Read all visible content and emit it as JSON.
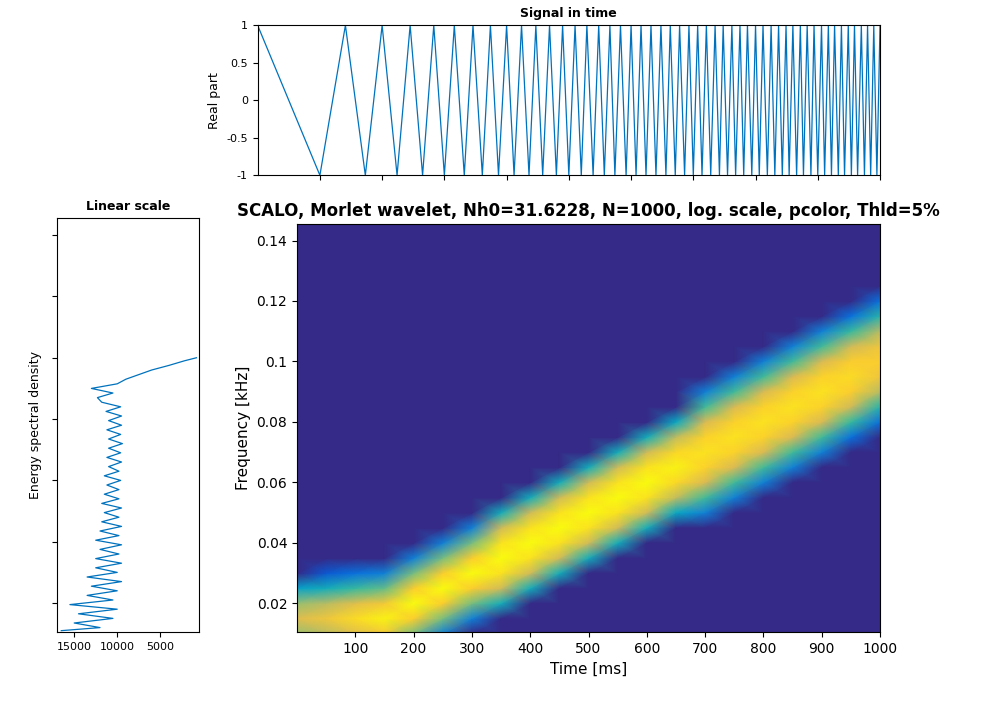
{
  "chart_data": [
    {
      "type": "line",
      "title": "Signal in time",
      "y_label": "Real part",
      "color": "#0072bd",
      "x": [
        0,
        100,
        141,
        173,
        200,
        224,
        245,
        265,
        283,
        300,
        316,
        332,
        346,
        361,
        374,
        387,
        400,
        412,
        424,
        436,
        447,
        458,
        469,
        480,
        490,
        500,
        510,
        520,
        529,
        539,
        548,
        557,
        566,
        574,
        583,
        592,
        600,
        608,
        616,
        624,
        632,
        640,
        648,
        656,
        663,
        671,
        678,
        686,
        693,
        700,
        707,
        714,
        721,
        728,
        735,
        742,
        748,
        755,
        762,
        768,
        775,
        781,
        787,
        794,
        800,
        806,
        812,
        819,
        825,
        831,
        837,
        843,
        849,
        854,
        860,
        866,
        872,
        877,
        883,
        889,
        894,
        900,
        906,
        911,
        917,
        922,
        927,
        933,
        938,
        943,
        949,
        954,
        959,
        964,
        970,
        975,
        980,
        985,
        990,
        995,
        1000
      ],
      "values": [
        1,
        -1,
        1,
        -1,
        1,
        -1,
        1,
        -1,
        1,
        -1,
        1,
        -1,
        1,
        -1,
        1,
        -1,
        1,
        -1,
        1,
        -1,
        1,
        -1,
        1,
        -1,
        1,
        -1,
        1,
        -1,
        1,
        -1,
        1,
        -1,
        1,
        -1,
        1,
        -1,
        1,
        -1,
        1,
        -1,
        1,
        -1,
        1,
        -1,
        1,
        -1,
        1,
        -1,
        1,
        -1,
        1,
        -1,
        1,
        -1,
        1,
        -1,
        1,
        -1,
        1,
        -1,
        1,
        -1,
        1,
        -1,
        1,
        -1,
        1,
        -1,
        1,
        -1,
        1,
        -1,
        1,
        -1,
        1,
        -1,
        1,
        -1,
        1,
        -1,
        1,
        -1,
        1,
        -1,
        1,
        -1,
        1,
        -1,
        1,
        -1,
        1,
        -1,
        1,
        -1,
        1,
        -1,
        1,
        -1,
        1,
        -1,
        1
      ],
      "xlim": [
        0,
        1000
      ],
      "ylim": [
        -1,
        1
      ],
      "xticks": [
        100,
        200,
        300,
        400,
        500,
        600,
        700,
        800,
        900,
        1000
      ],
      "yticks": [
        -1,
        -0.5,
        0,
        0.5,
        1
      ],
      "tick_labels": "y"
    },
    {
      "type": "line",
      "orientation": "horizontal",
      "title": "Linear scale",
      "y_label": "Energy spectral density",
      "color": "#0072bd",
      "y": [
        0.011,
        0.012,
        0.0135,
        0.015,
        0.0165,
        0.018,
        0.0195,
        0.021,
        0.0225,
        0.024,
        0.0255,
        0.027,
        0.0285,
        0.03,
        0.0315,
        0.033,
        0.0345,
        0.036,
        0.0375,
        0.039,
        0.0405,
        0.042,
        0.0435,
        0.045,
        0.0465,
        0.048,
        0.0495,
        0.051,
        0.0525,
        0.054,
        0.0555,
        0.057,
        0.0585,
        0.06,
        0.0615,
        0.063,
        0.0645,
        0.066,
        0.0675,
        0.069,
        0.0705,
        0.072,
        0.0735,
        0.075,
        0.0765,
        0.078,
        0.0795,
        0.081,
        0.0825,
        0.084,
        0.0855,
        0.087,
        0.0885,
        0.09,
        0.0915,
        0.093,
        0.0945,
        0.096,
        0.0975,
        0.099,
        0.1
      ],
      "values": [
        16500,
        12000,
        15000,
        10500,
        14500,
        10000,
        15500,
        10500,
        13500,
        10000,
        13000,
        9500,
        13500,
        10000,
        12500,
        9500,
        12500,
        9800,
        12000,
        9500,
        12500,
        9800,
        12000,
        9500,
        11800,
        9800,
        11500,
        9500,
        11800,
        9800,
        11500,
        9800,
        11200,
        9600,
        11500,
        9800,
        11000,
        9500,
        11200,
        9600,
        11000,
        9400,
        11000,
        9600,
        11200,
        9500,
        11000,
        9500,
        11300,
        9600,
        11800,
        12300,
        10500,
        13000,
        10000,
        9000,
        7500,
        6000,
        4000,
        2200,
        800
      ],
      "xlim": [
        17000,
        500
      ],
      "xticks": [
        15000,
        10000,
        5000
      ],
      "ylim": [
        0.0105,
        0.1455
      ],
      "yticks": [
        0.02,
        0.04,
        0.06,
        0.08,
        0.1,
        0.12,
        0.14
      ],
      "tick_labels": "x"
    },
    {
      "type": "heatmap",
      "title": "SCALO, Morlet wavelet, Nh0=31.6228, N=1000, log. scale, pcolor, Thld=5%",
      "x_label": "Time [ms]",
      "y_label": "Frequency [kHz]",
      "x": [
        0,
        50,
        100,
        150,
        200,
        250,
        300,
        350,
        400,
        450,
        500,
        550,
        600,
        650,
        700,
        750,
        800,
        850,
        900,
        950,
        1000
      ],
      "y": [
        0.01,
        0.015,
        0.02,
        0.025,
        0.03,
        0.035,
        0.04,
        0.045,
        0.05,
        0.055,
        0.06,
        0.065,
        0.07,
        0.075,
        0.08,
        0.085,
        0.09,
        0.095,
        0.1,
        0.105,
        0.11,
        0.115,
        0.12,
        0.125,
        0.13,
        0.135,
        0.14,
        0.145,
        0.15
      ],
      "cells": [
        [
          0.24,
          0.3,
          0.42,
          0.54,
          0.2,
          0.05,
          0,
          0,
          0,
          0,
          0,
          0,
          0,
          0,
          0,
          0,
          0,
          0,
          0,
          0,
          0
        ],
        [
          0.4,
          0.5,
          0.7,
          0.9,
          0.6,
          0.2,
          0.05,
          0,
          0,
          0,
          0,
          0,
          0,
          0,
          0,
          0,
          0,
          0,
          0,
          0,
          0
        ],
        [
          0.24,
          0.3,
          0.42,
          0.54,
          1,
          0.6,
          0.2,
          0.1,
          0,
          0,
          0,
          0,
          0,
          0,
          0,
          0,
          0,
          0,
          0,
          0,
          0
        ],
        [
          0.08,
          0.1,
          0.14,
          0.18,
          0.6,
          1,
          0.6,
          0.35,
          0.1,
          0,
          0,
          0,
          0,
          0,
          0,
          0,
          0,
          0,
          0,
          0,
          0
        ],
        [
          0.02,
          0.03,
          0.04,
          0.05,
          0.2,
          0.6,
          1,
          0.75,
          0.35,
          0.1,
          0,
          0,
          0,
          0,
          0,
          0,
          0,
          0,
          0,
          0,
          0
        ],
        [
          0,
          0,
          0,
          0,
          0.05,
          0.2,
          0.6,
          1,
          0.75,
          0.35,
          0.1,
          0,
          0,
          0,
          0,
          0,
          0,
          0,
          0,
          0,
          0
        ],
        [
          0,
          0,
          0,
          0,
          0,
          0.05,
          0.2,
          0.75,
          1,
          0.75,
          0.35,
          0.1,
          0,
          0,
          0,
          0,
          0,
          0,
          0,
          0,
          0
        ],
        [
          0,
          0,
          0,
          0,
          0,
          0,
          0.05,
          0.35,
          0.75,
          1,
          0.75,
          0.35,
          0.1,
          0,
          0,
          0,
          0,
          0,
          0,
          0,
          0
        ],
        [
          0,
          0,
          0,
          0,
          0,
          0,
          0,
          0.1,
          0.35,
          0.75,
          1,
          0.75,
          0.35,
          0.09,
          0.05,
          0,
          0,
          0,
          0,
          0,
          0
        ],
        [
          0,
          0,
          0,
          0,
          0,
          0,
          0,
          0,
          0.1,
          0.35,
          0.75,
          1,
          0.75,
          0.32,
          0.15,
          0.05,
          0,
          0,
          0,
          0,
          0
        ],
        [
          0,
          0,
          0,
          0,
          0,
          0,
          0,
          0,
          0,
          0.1,
          0.35,
          0.75,
          1,
          0.68,
          0.38,
          0.15,
          0.05,
          0,
          0,
          0,
          0
        ],
        [
          0,
          0,
          0,
          0,
          0,
          0,
          0,
          0,
          0,
          0,
          0.1,
          0.35,
          0.75,
          0.9,
          0.64,
          0.38,
          0.15,
          0.05,
          0,
          0,
          0
        ],
        [
          0,
          0,
          0,
          0,
          0,
          0,
          0,
          0,
          0,
          0,
          0,
          0.1,
          0.35,
          0.68,
          0.75,
          0.64,
          0.38,
          0.15,
          0.05,
          0,
          0
        ],
        [
          0,
          0,
          0,
          0,
          0,
          0,
          0,
          0,
          0,
          0,
          0,
          0,
          0.1,
          0.32,
          0.64,
          0.75,
          0.64,
          0.38,
          0.15,
          0.04,
          0
        ],
        [
          0,
          0,
          0,
          0,
          0,
          0,
          0,
          0,
          0,
          0,
          0,
          0,
          0,
          0.09,
          0.38,
          0.64,
          0.75,
          0.64,
          0.38,
          0.14,
          0.04
        ],
        [
          0,
          0,
          0,
          0,
          0,
          0,
          0,
          0,
          0,
          0,
          0,
          0,
          0,
          0,
          0.15,
          0.38,
          0.64,
          0.75,
          0.64,
          0.35,
          0.12
        ],
        [
          0,
          0,
          0,
          0,
          0,
          0,
          0,
          0,
          0,
          0,
          0,
          0,
          0,
          0,
          0.05,
          0.15,
          0.38,
          0.64,
          0.75,
          0.6,
          0.3
        ],
        [
          0,
          0,
          0,
          0,
          0,
          0,
          0,
          0,
          0,
          0,
          0,
          0,
          0,
          0,
          0,
          0.05,
          0.15,
          0.38,
          0.64,
          0.7,
          0.51
        ],
        [
          0,
          0,
          0,
          0,
          0,
          0,
          0,
          0,
          0,
          0,
          0,
          0,
          0,
          0,
          0,
          0,
          0.05,
          0.15,
          0.38,
          0.6,
          0.6
        ],
        [
          0,
          0,
          0,
          0,
          0,
          0,
          0,
          0,
          0,
          0,
          0,
          0,
          0,
          0,
          0,
          0,
          0,
          0.05,
          0.15,
          0.35,
          0.51
        ],
        [
          0,
          0,
          0,
          0,
          0,
          0,
          0,
          0,
          0,
          0,
          0,
          0,
          0,
          0,
          0,
          0,
          0,
          0,
          0.05,
          0.14,
          0.3
        ],
        [
          0,
          0,
          0,
          0,
          0,
          0,
          0,
          0,
          0,
          0,
          0,
          0,
          0,
          0,
          0,
          0,
          0,
          0,
          0,
          0.04,
          0.12
        ],
        [
          0,
          0,
          0,
          0,
          0,
          0,
          0,
          0,
          0,
          0,
          0,
          0,
          0,
          0,
          0,
          0,
          0,
          0,
          0,
          0,
          0.04
        ],
        [
          0,
          0,
          0,
          0,
          0,
          0,
          0,
          0,
          0,
          0,
          0,
          0,
          0,
          0,
          0,
          0,
          0,
          0,
          0,
          0,
          0
        ],
        [
          0,
          0,
          0,
          0,
          0,
          0,
          0,
          0,
          0,
          0,
          0,
          0,
          0,
          0,
          0,
          0,
          0,
          0,
          0,
          0,
          0
        ],
        [
          0,
          0,
          0,
          0,
          0,
          0,
          0,
          0,
          0,
          0,
          0,
          0,
          0,
          0,
          0,
          0,
          0,
          0,
          0,
          0,
          0
        ],
        [
          0,
          0,
          0,
          0,
          0,
          0,
          0,
          0,
          0,
          0,
          0,
          0,
          0,
          0,
          0,
          0,
          0,
          0,
          0,
          0,
          0
        ],
        [
          0,
          0,
          0,
          0,
          0,
          0,
          0,
          0,
          0,
          0,
          0,
          0,
          0,
          0,
          0,
          0,
          0,
          0,
          0,
          0,
          0
        ],
        [
          0,
          0,
          0,
          0,
          0,
          0,
          0,
          0,
          0,
          0,
          0,
          0,
          0,
          0,
          0,
          0,
          0,
          0,
          0,
          0,
          0
        ]
      ],
      "xlim": [
        0,
        1000
      ],
      "ylim": [
        0.0105,
        0.1455
      ],
      "xticks": [
        100,
        200,
        300,
        400,
        500,
        600,
        700,
        800,
        900,
        1000
      ],
      "yticks": [
        0.02,
        0.04,
        0.06,
        0.08,
        0.1,
        0.12,
        0.14
      ]
    }
  ]
}
